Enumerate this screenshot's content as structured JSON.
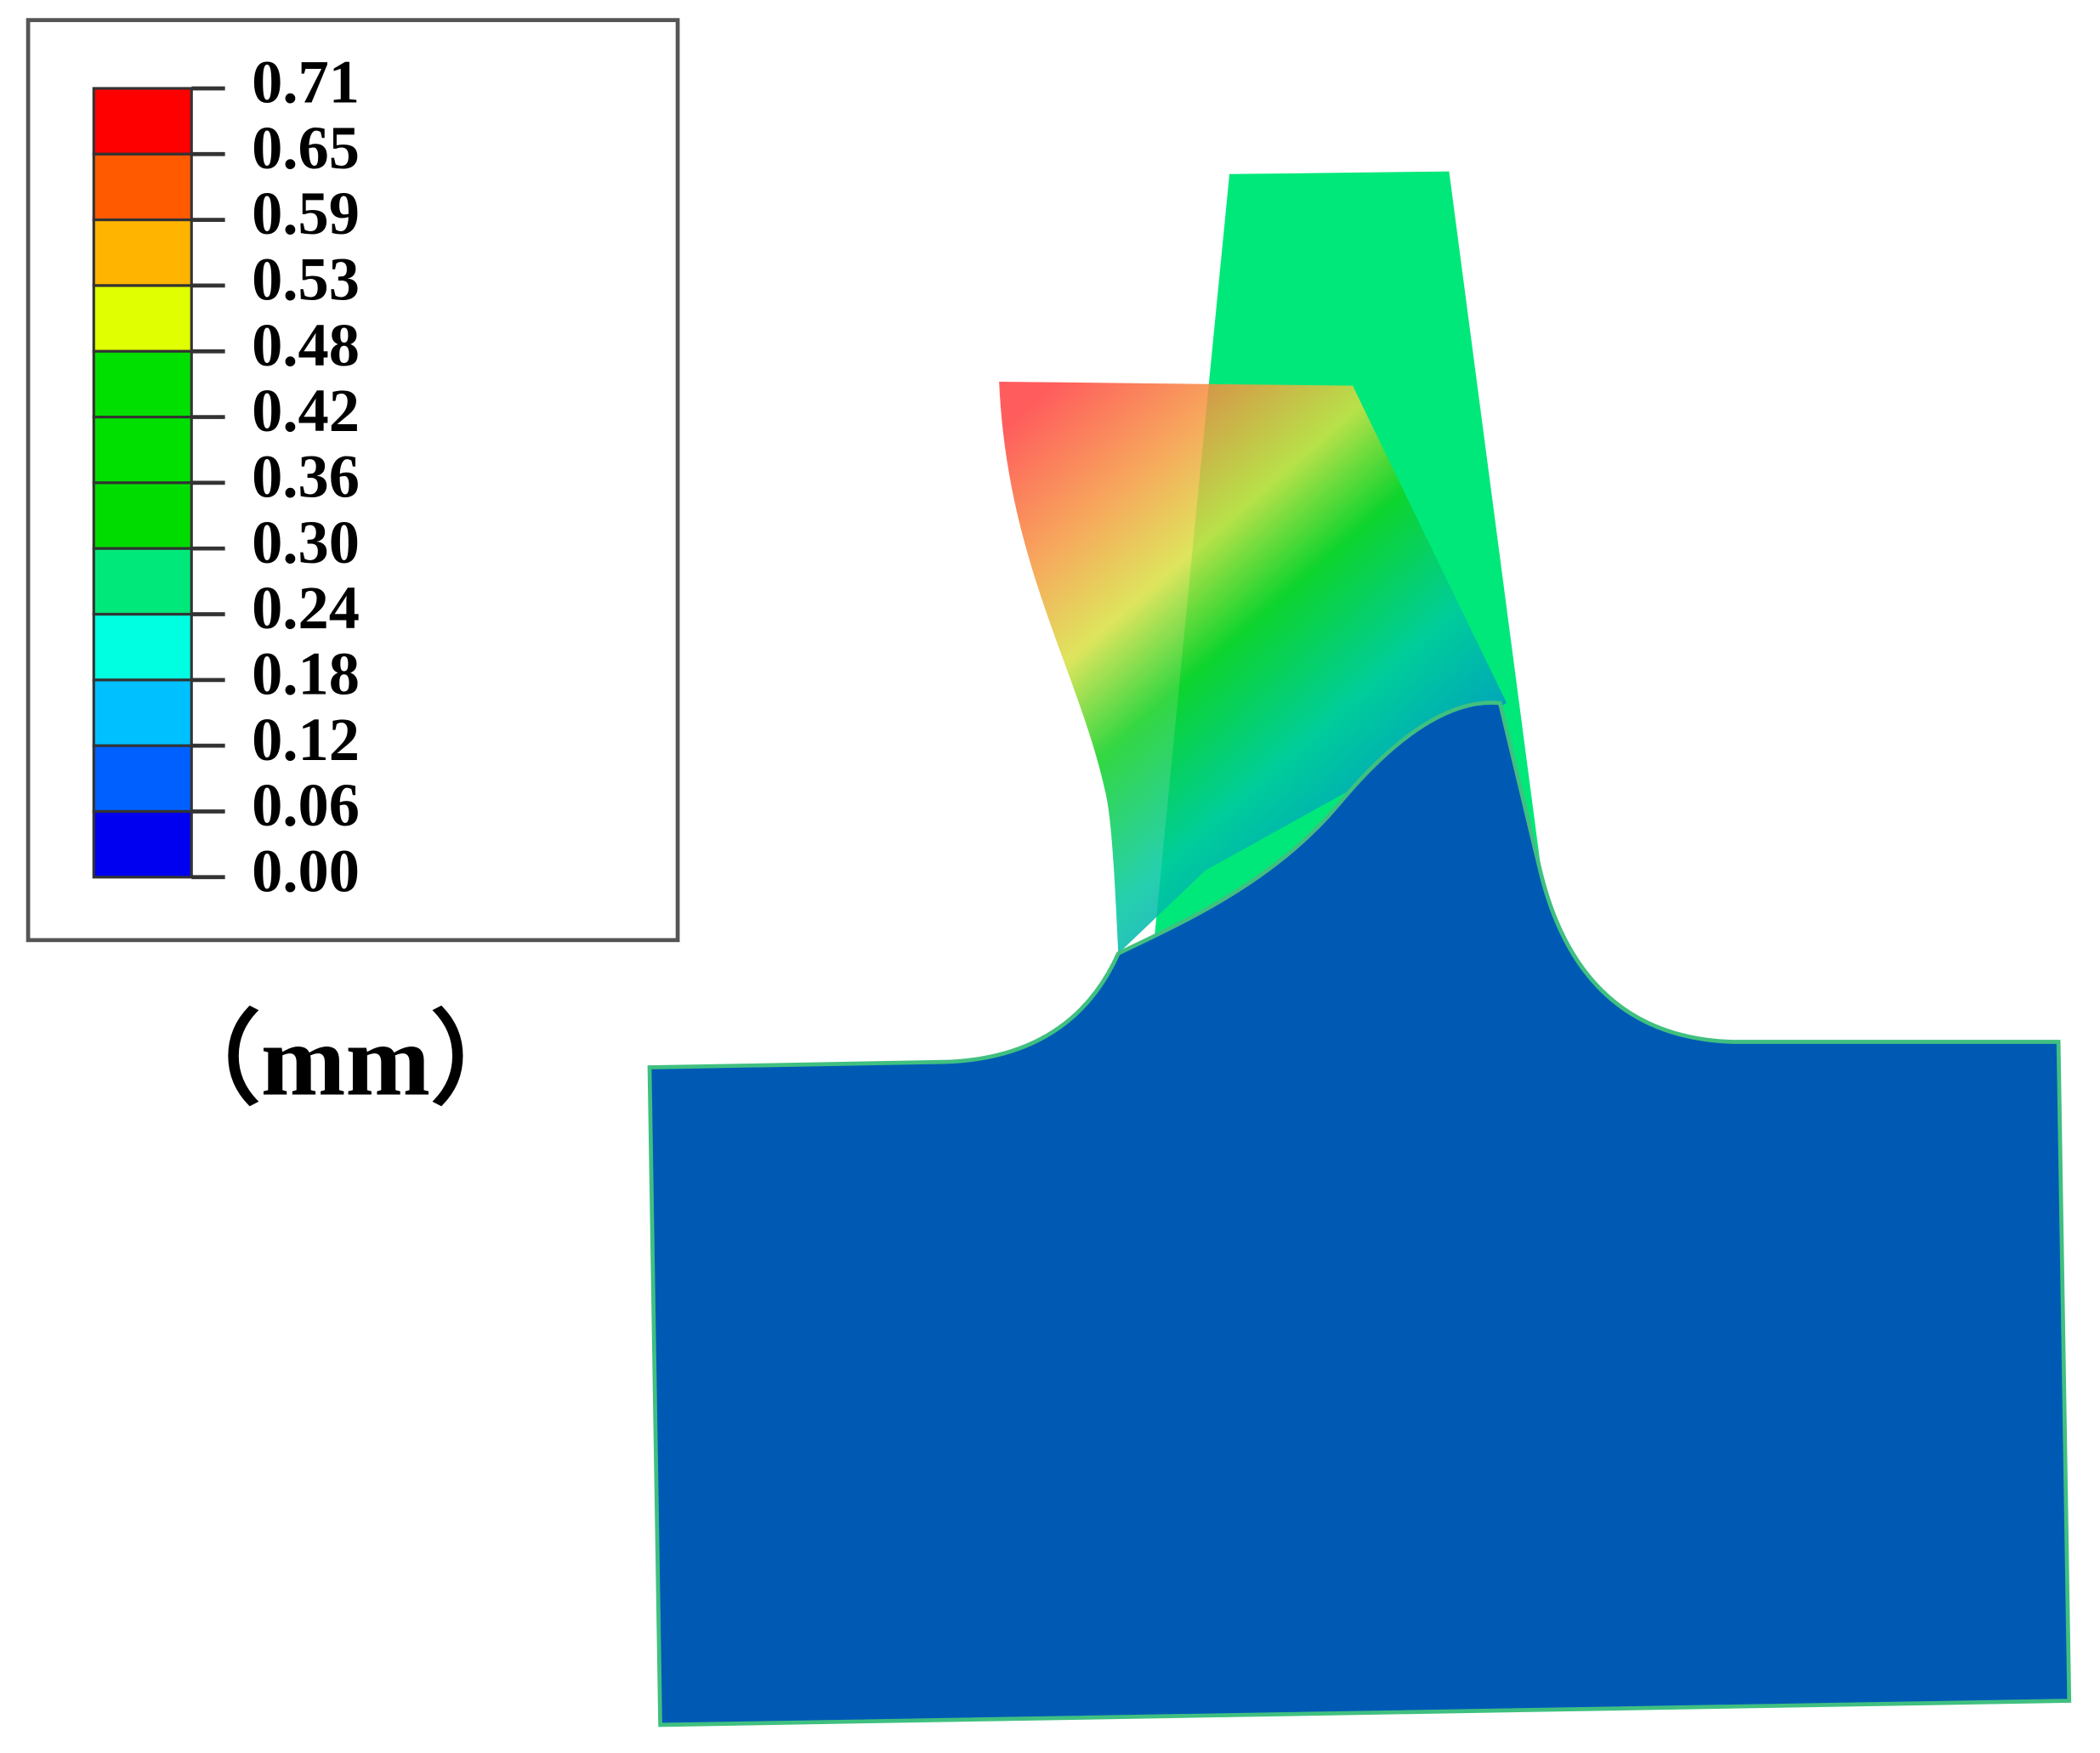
{
  "legend": {
    "labels": [
      "0.71",
      "0.65",
      "0.59",
      "0.53",
      "0.48",
      "0.42",
      "0.36",
      "0.30",
      "0.24",
      "0.18",
      "0.12",
      "0.06",
      "0.00"
    ],
    "colors": [
      "#ff0000",
      "#ff5a00",
      "#ffb400",
      "#e0ff00",
      "#00e000",
      "#00e000",
      "#00dc00",
      "#00e87a",
      "#00ffe0",
      "#00c0ff",
      "#0060ff",
      "#0000f0"
    ]
  },
  "unit": "（mm）"
}
